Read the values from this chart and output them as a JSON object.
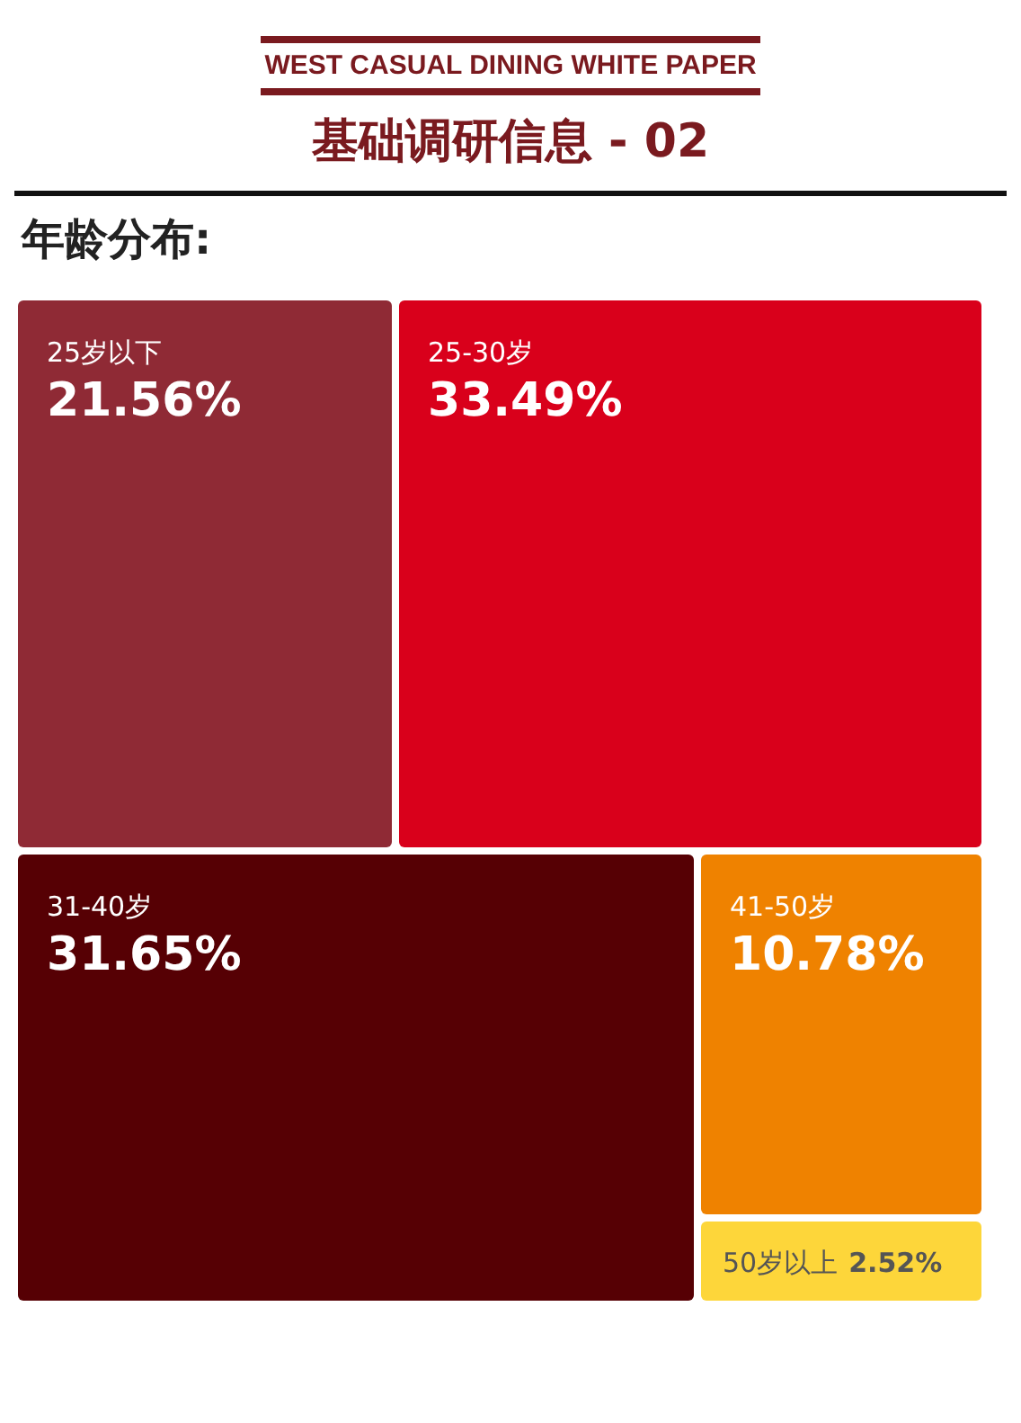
{
  "chart_data": {
    "type": "other",
    "title": "WEST CASUAL DINING WHITE PAPER",
    "subtitle": "基础调研信息 - 02",
    "annotations": [
      "年龄分布:"
    ],
    "categories": [
      "25岁以下",
      "25-30岁",
      "31-40岁",
      "41-50岁",
      "50岁以上"
    ],
    "values": [
      21.56,
      33.49,
      31.65,
      10.78,
      2.52
    ],
    "value_labels": [
      "21.56%",
      "33.49%",
      "31.65%",
      "10.78%",
      "2.52%"
    ],
    "colors": [
      "#8f2a35",
      "#d9001b",
      "#560004",
      "#ef8200",
      "#fdd63a"
    ]
  }
}
